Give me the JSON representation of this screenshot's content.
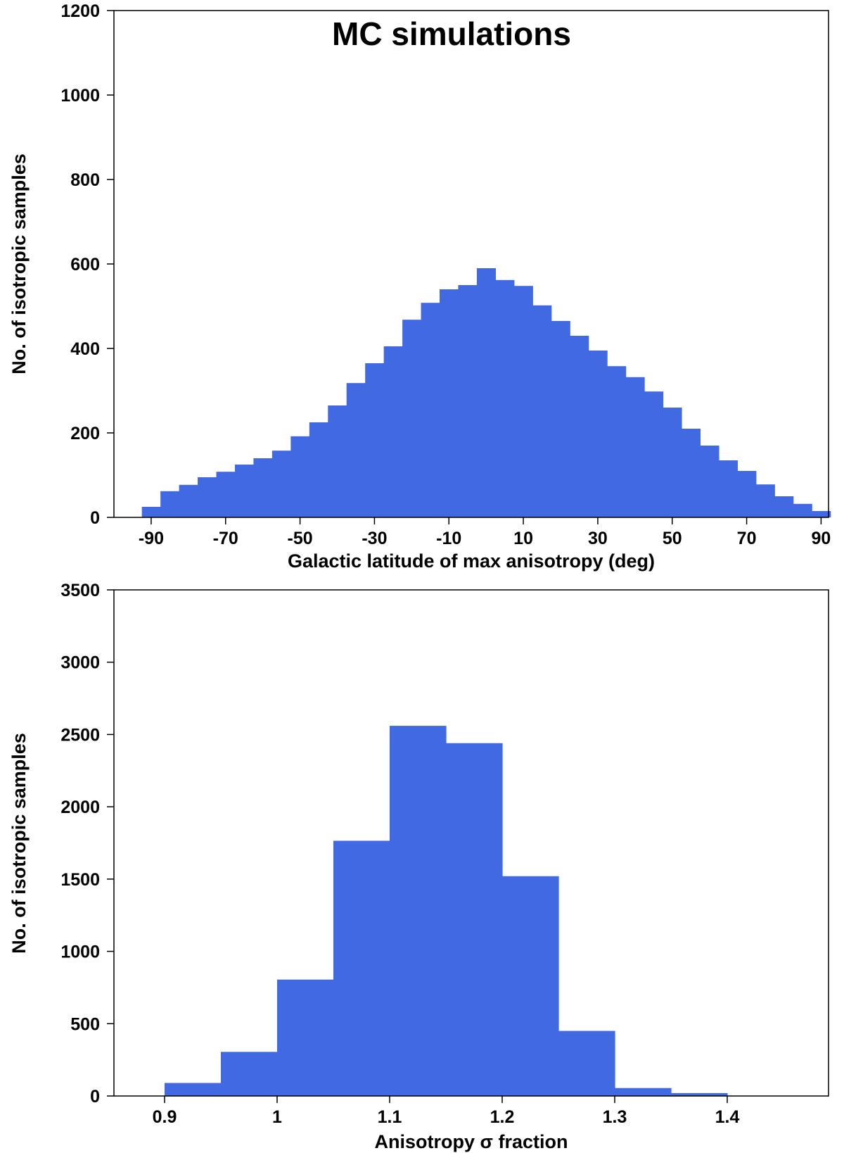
{
  "chart_data": [
    {
      "type": "bar",
      "title": "MC simulations",
      "xlabel": "Galactic latitude of max anisotropy (deg)",
      "ylabel": "No. of isotropic samples",
      "xlim": [
        -100,
        92
      ],
      "ylim": [
        0,
        1200
      ],
      "xticks": [
        -90,
        -70,
        -50,
        -30,
        -10,
        10,
        30,
        50,
        70,
        90
      ],
      "yticks": [
        0,
        200,
        400,
        600,
        800,
        1000,
        1200
      ],
      "bin_width": 5,
      "bin_left_edges": [
        -92.5,
        -87.5,
        -82.5,
        -77.5,
        -72.5,
        -67.5,
        -62.5,
        -57.5,
        -52.5,
        -47.5,
        -42.5,
        -37.5,
        -32.5,
        -27.5,
        -22.5,
        -17.5,
        -12.5,
        -7.5,
        -2.5,
        2.5,
        7.5,
        12.5,
        17.5,
        22.5,
        27.5,
        32.5,
        37.5,
        42.5,
        47.5,
        52.5,
        57.5,
        62.5,
        67.5,
        72.5,
        77.5,
        82.5,
        87.5
      ],
      "values": [
        25,
        62,
        77,
        95,
        108,
        125,
        140,
        158,
        192,
        225,
        265,
        318,
        365,
        405,
        468,
        508,
        540,
        550,
        590,
        562,
        548,
        502,
        465,
        430,
        395,
        358,
        332,
        298,
        260,
        210,
        170,
        135,
        110,
        78,
        50,
        32,
        15
      ],
      "color": "#4169E1"
    },
    {
      "type": "bar",
      "xlabel": "Anisotropy σ fraction",
      "ylabel": "No. of isotropic samples",
      "xlim": [
        0.855,
        1.49
      ],
      "ylim": [
        0,
        3500
      ],
      "xticks": [
        "0.9",
        "1",
        "1.1",
        "1.2",
        "1.3",
        "1.4"
      ],
      "yticks": [
        0,
        500,
        1000,
        1500,
        2000,
        2500,
        3000,
        3500
      ],
      "bin_width": 0.05,
      "bin_left_edges": [
        0.9,
        0.95,
        1.0,
        1.05,
        1.1,
        1.15,
        1.2,
        1.25,
        1.3,
        1.35
      ],
      "values": [
        90,
        305,
        805,
        1765,
        2560,
        2440,
        1520,
        450,
        55,
        20
      ],
      "color": "#4169E1"
    }
  ]
}
